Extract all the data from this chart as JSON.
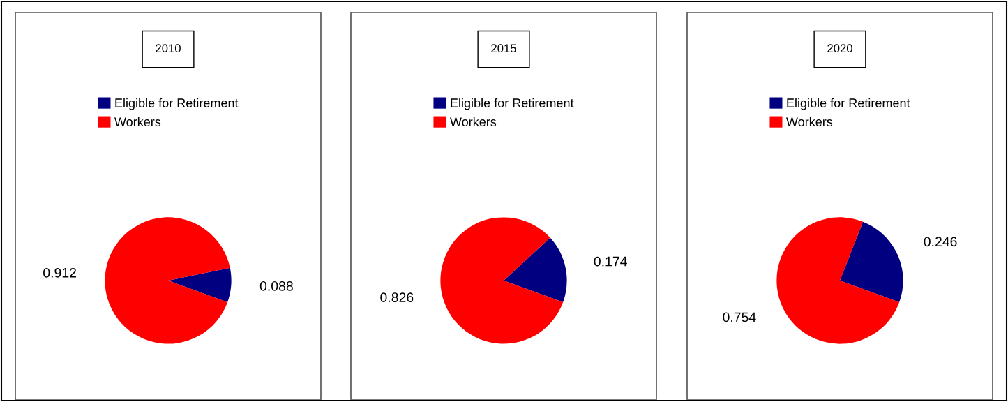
{
  "chart_data": [
    {
      "type": "pie",
      "title": "2010",
      "categories": [
        "Eligible for Retirement",
        "Workers"
      ],
      "values": [
        0.088,
        0.912
      ],
      "colors": [
        "#000080",
        "#ff0000"
      ],
      "data_labels": true,
      "legend": "top"
    },
    {
      "type": "pie",
      "title": "2015",
      "categories": [
        "Eligible for Retirement",
        "Workers"
      ],
      "values": [
        0.174,
        0.826
      ],
      "colors": [
        "#000080",
        "#ff0000"
      ],
      "data_labels": true,
      "legend": "top"
    },
    {
      "type": "pie",
      "title": "2020",
      "categories": [
        "Eligible for Retirement",
        "Workers"
      ],
      "values": [
        0.246,
        0.754
      ],
      "colors": [
        "#000080",
        "#ff0000"
      ],
      "data_labels": true,
      "legend": "top"
    }
  ]
}
